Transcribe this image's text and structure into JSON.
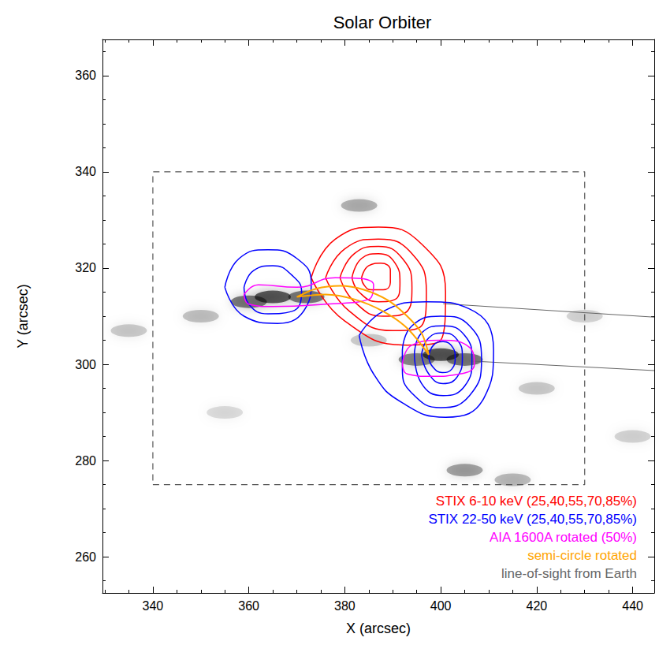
{
  "chart_data": {
    "type": "contour",
    "title": "Solar Orbiter",
    "x_label": "X (arcsec)",
    "y_label": "Y (arcsec)",
    "xlim": [
      329.5,
      444.5
    ],
    "ylim": [
      252.5,
      367.5
    ],
    "xticks": [
      340,
      360,
      380,
      400,
      420,
      440
    ],
    "yticks": [
      260,
      280,
      300,
      320,
      340,
      360
    ],
    "grid": false,
    "legend": "lower right",
    "box": {
      "x": [
        340,
        430
      ],
      "y": [
        275,
        340
      ],
      "color": "#555555",
      "line_style": "dashed"
    },
    "background": [
      [
        365,
        314,
        1.0
      ],
      [
        360,
        313,
        0.8
      ],
      [
        372,
        314,
        0.8
      ],
      [
        400,
        302,
        1.0
      ],
      [
        405,
        301,
        0.8
      ],
      [
        395,
        301,
        0.7
      ],
      [
        350,
        310,
        0.35
      ],
      [
        335,
        307,
        0.3
      ],
      [
        383,
        333,
        0.45
      ],
      [
        405,
        278,
        0.55
      ],
      [
        415,
        276,
        0.4
      ],
      [
        420,
        295,
        0.3
      ],
      [
        355,
        290,
        0.2
      ],
      [
        440,
        285,
        0.25
      ],
      [
        430,
        310,
        0.25
      ],
      [
        385,
        305,
        0.3
      ]
    ],
    "series": [
      {
        "name": "STIX 6-10 keV (25,40,55,70,85%)",
        "color": "#ff0000",
        "type": "contour",
        "contours": [
          [
            [
              373,
              318
            ],
            [
              378,
              326
            ],
            [
              387,
              328.5
            ],
            [
              396,
              325
            ],
            [
              401,
              315
            ],
            [
              400,
              305
            ],
            [
              393,
              304
            ],
            [
              380,
              309
            ]
          ],
          [
            [
              376,
              318
            ],
            [
              380,
              324
            ],
            [
              387,
              326
            ],
            [
              394,
              323
            ],
            [
              397,
              315
            ],
            [
              396,
              308
            ],
            [
              390,
              307
            ],
            [
              381,
              311
            ]
          ],
          [
            [
              379,
              318
            ],
            [
              382,
              323
            ],
            [
              387,
              324.5
            ],
            [
              392,
              322
            ],
            [
              394,
              316
            ],
            [
              393,
              311
            ],
            [
              388,
              310
            ],
            [
              382,
              313
            ]
          ],
          [
            [
              381.5,
              318
            ],
            [
              383.5,
              322
            ],
            [
              387,
              323
            ],
            [
              390.5,
              321
            ],
            [
              391.5,
              317
            ],
            [
              390.5,
              313.5
            ],
            [
              387,
              313
            ],
            [
              383,
              315
            ]
          ],
          [
            [
              383.5,
              318
            ],
            [
              385,
              320.5
            ],
            [
              387.5,
              321
            ],
            [
              389.5,
              319.5
            ],
            [
              389.5,
              317
            ],
            [
              388,
              315.5
            ],
            [
              385.5,
              315.5
            ],
            [
              384,
              316.5
            ]
          ]
        ]
      },
      {
        "name": "STIX 22-50 keV (25,40,55,70,85%)",
        "color": "#0000ff",
        "type": "contour",
        "contours": [
          [
            [
              383,
              306
            ],
            [
              388,
              311
            ],
            [
              397,
              313
            ],
            [
              406,
              311.5
            ],
            [
              411,
              303
            ],
            [
              409,
              293
            ],
            [
              401,
              289
            ],
            [
              392,
              292
            ],
            [
              386,
              298
            ]
          ],
          [
            [
              392,
              303
            ],
            [
              394,
              308
            ],
            [
              400,
              310
            ],
            [
              406,
              308
            ],
            [
              408.5,
              301
            ],
            [
              406,
              293.5
            ],
            [
              400,
              291
            ],
            [
              394,
              294
            ],
            [
              392,
              299
            ]
          ],
          [
            [
              394.5,
              302
            ],
            [
              396,
              306.5
            ],
            [
              400.5,
              308
            ],
            [
              405,
              306
            ],
            [
              406.5,
              301
            ],
            [
              405,
              295.5
            ],
            [
              400.5,
              293.5
            ],
            [
              396,
              296
            ]
          ],
          [
            [
              396,
              302
            ],
            [
              397.5,
              305.5
            ],
            [
              400.5,
              306.5
            ],
            [
              403.5,
              305
            ],
            [
              404.5,
              301.5
            ],
            [
              403.5,
              297.5
            ],
            [
              400.5,
              296
            ],
            [
              397.5,
              298
            ]
          ],
          [
            [
              397.5,
              301.5
            ],
            [
              398.5,
              304
            ],
            [
              400.5,
              304.7
            ],
            [
              402.5,
              303.5
            ],
            [
              403,
              301.5
            ],
            [
              402.3,
              299
            ],
            [
              400.3,
              298.3
            ],
            [
              398.3,
              299.5
            ]
          ],
          [
            [
              355,
              316
            ],
            [
              358,
              322
            ],
            [
              364,
              323.8
            ],
            [
              370,
              322
            ],
            [
              373,
              317
            ],
            [
              372,
              312
            ],
            [
              366,
              308.5
            ],
            [
              359,
              310
            ]
          ],
          [
            [
              359,
              316
            ],
            [
              361,
              319.5
            ],
            [
              365,
              320.5
            ],
            [
              369,
              318.5
            ],
            [
              371,
              315
            ],
            [
              369,
              311
            ],
            [
              364,
              310.5
            ],
            [
              360,
              312.5
            ]
          ]
        ]
      },
      {
        "name": "AIA 1600A rotated (50%)",
        "color": "#ff00ff",
        "type": "contour",
        "contours": [
          [
            [
              359,
              314.5
            ],
            [
              362,
              316.5
            ],
            [
              370,
              316
            ],
            [
              378,
              318
            ],
            [
              386,
              316.5
            ],
            [
              385,
              313.5
            ],
            [
              376,
              312.5
            ],
            [
              365,
              312
            ],
            [
              360,
              312.5
            ]
          ],
          [
            [
              392,
              300
            ],
            [
              394,
              304
            ],
            [
              400,
              305
            ],
            [
              406,
              303.5
            ],
            [
              407,
              300
            ],
            [
              404,
              298
            ],
            [
              398,
              297.5
            ],
            [
              393,
              298
            ]
          ]
        ]
      },
      {
        "name": "semi-circle rotated",
        "color": "#ffa500",
        "type": "line",
        "values": [
          [
            370,
            314
          ],
          [
            374,
            315.7
          ],
          [
            379,
            316.3
          ],
          [
            384,
            315.5
          ],
          [
            389,
            313.3
          ],
          [
            393,
            310
          ],
          [
            396,
            306.5
          ],
          [
            397.5,
            302
          ],
          [
            393,
            307.5
          ],
          [
            388,
            311
          ],
          [
            382,
            313.5
          ],
          [
            376,
            314.5
          ],
          [
            370,
            314
          ]
        ]
      },
      {
        "name": "line-of-sight from Earth",
        "color": "#666666",
        "type": "line",
        "segments": [
          [
            [
              400.5,
              312.6
            ],
            [
              444.5,
              309.8
            ]
          ],
          [
            [
              405.9,
              300.7
            ],
            [
              444.5,
              298.7
            ]
          ]
        ]
      }
    ]
  }
}
